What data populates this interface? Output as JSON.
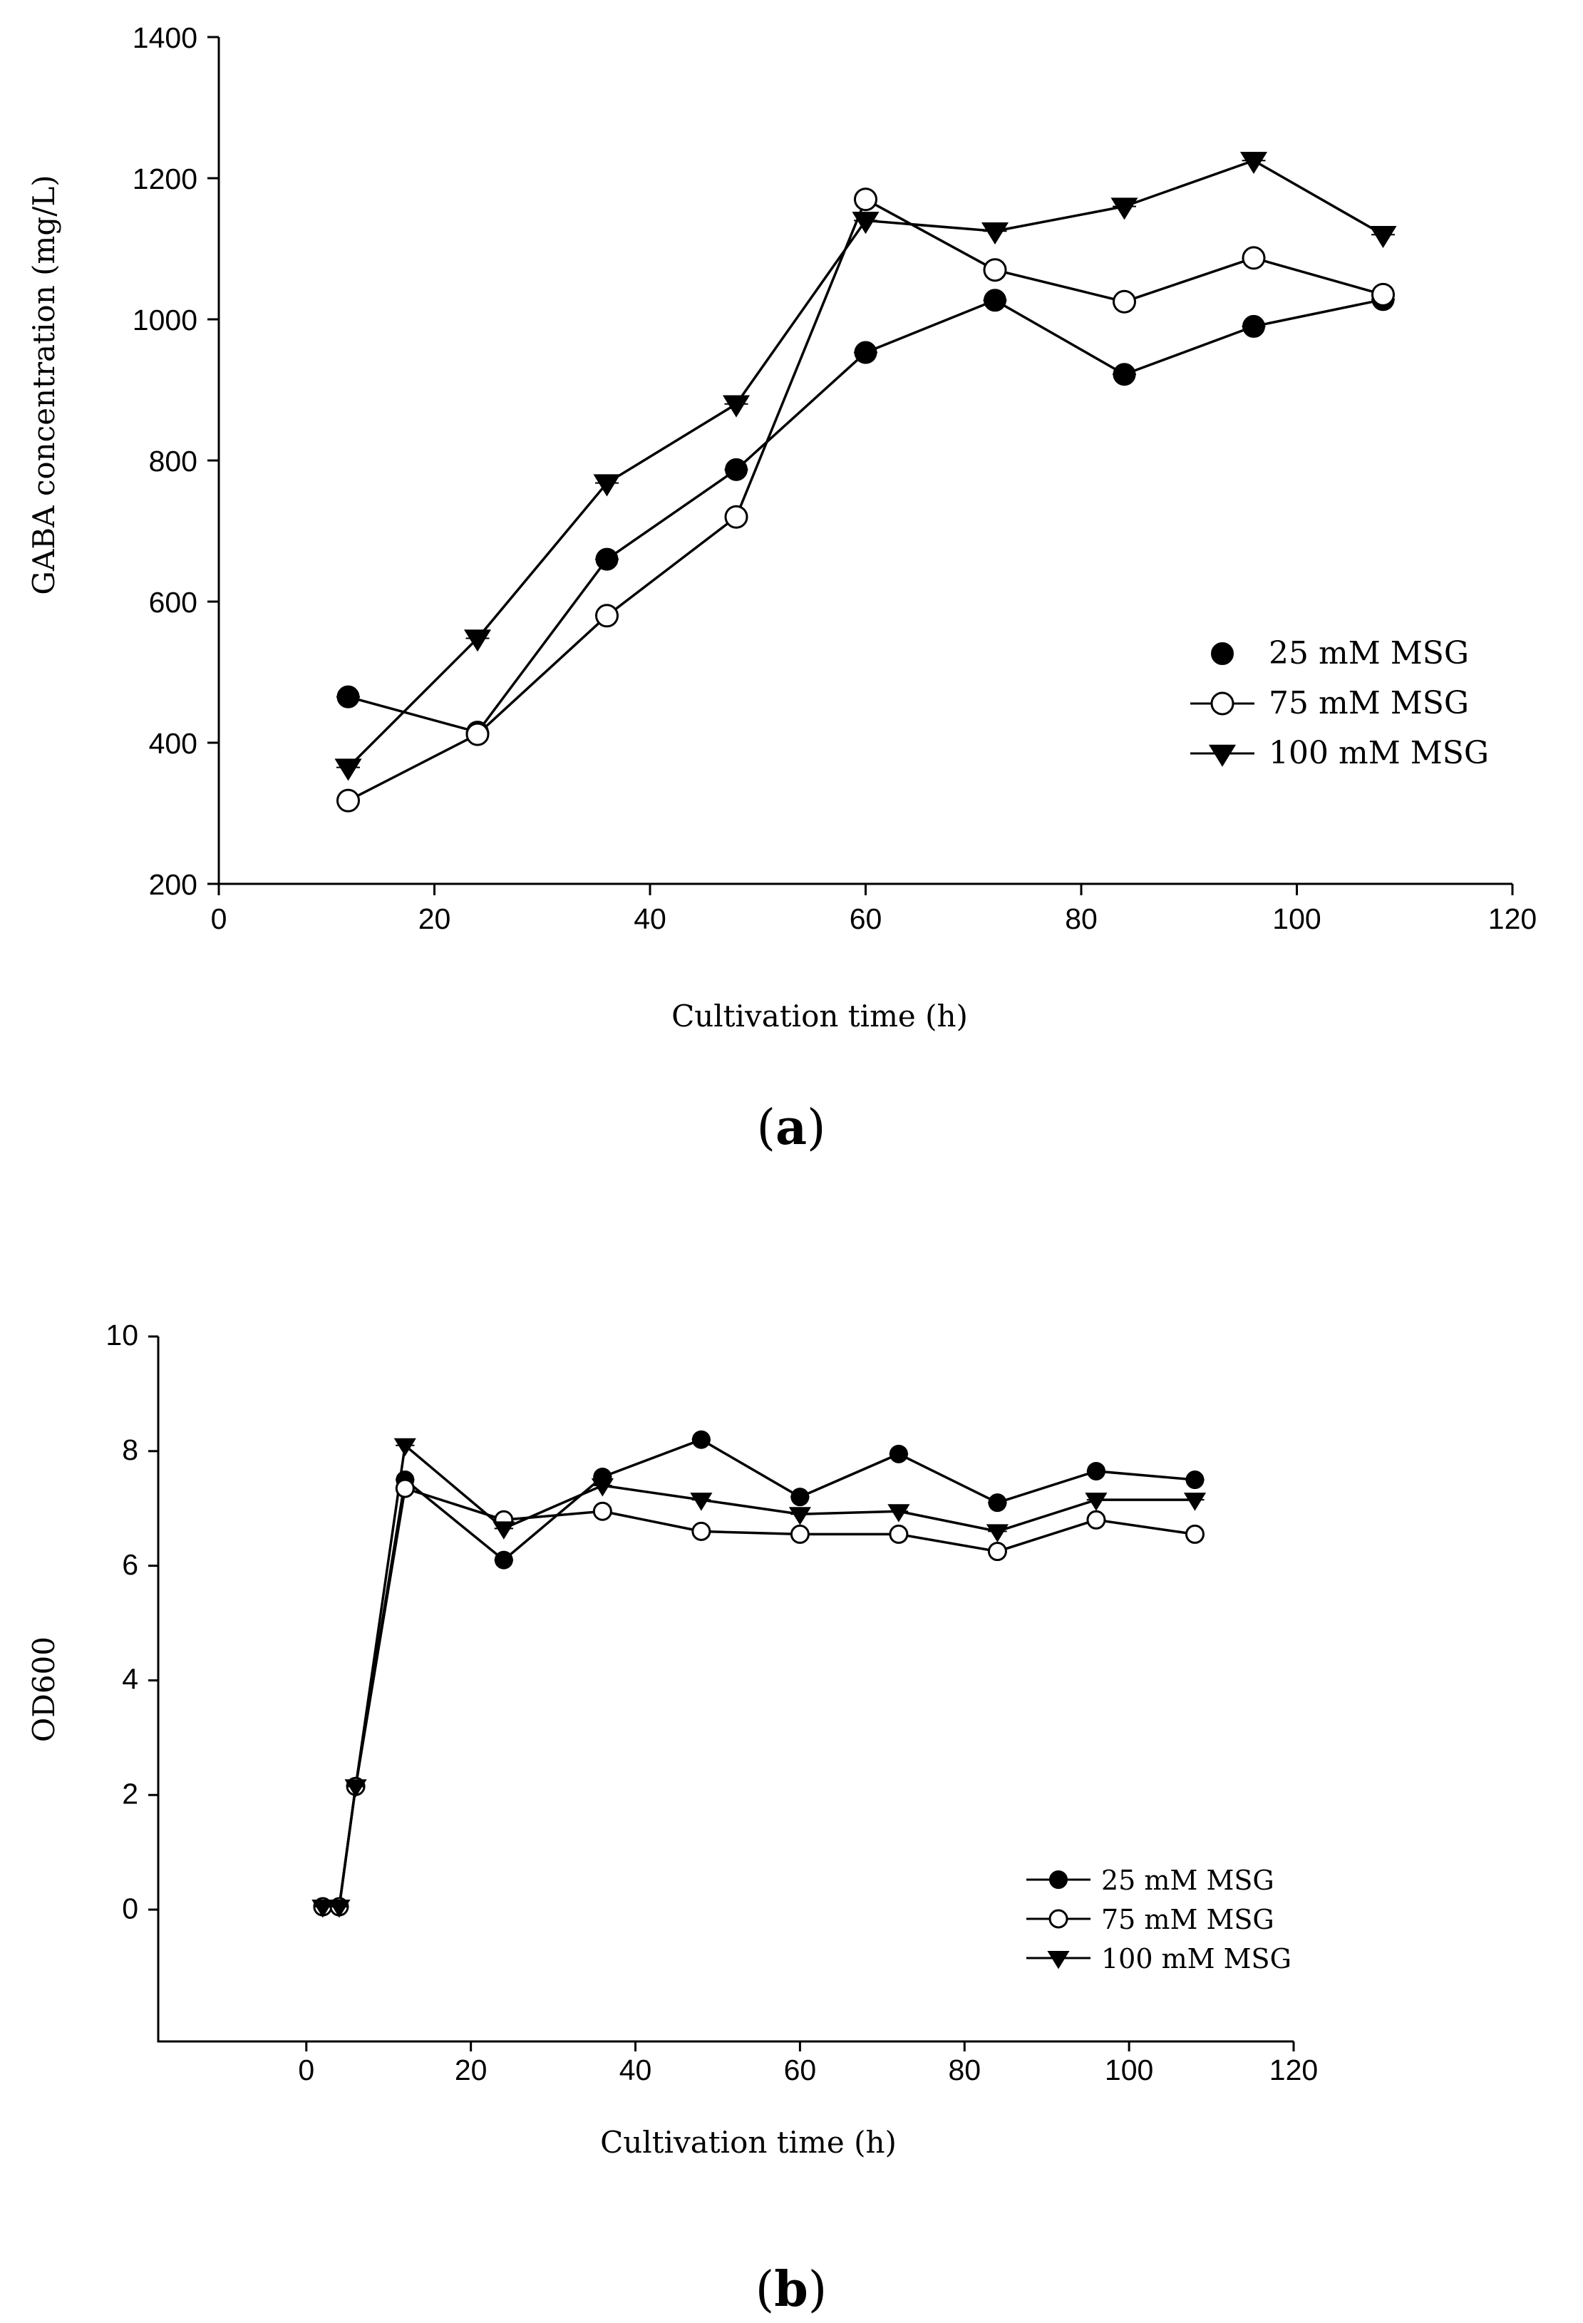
{
  "chart_data": [
    {
      "type": "line",
      "panel_label": "a",
      "xlabel": "Cultivation time (h)",
      "ylabel": "GABA concentration (mg/L)",
      "xlim": [
        0,
        120
      ],
      "ylim": [
        200,
        1400
      ],
      "xticks": [
        0,
        20,
        40,
        60,
        80,
        100,
        120
      ],
      "yticks": [
        200,
        400,
        600,
        800,
        1000,
        1200,
        1400
      ],
      "legend_position": "center-right",
      "series": [
        {
          "name": "25 mM MSG",
          "marker": "filled-circle",
          "x": [
            12,
            24,
            36,
            48,
            60,
            72,
            84,
            96,
            108
          ],
          "y": [
            465,
            415,
            660,
            787,
            953,
            1027,
            922,
            990,
            1028
          ]
        },
        {
          "name": "75 mM MSG",
          "marker": "open-circle",
          "x": [
            12,
            24,
            36,
            48,
            60,
            72,
            84,
            96,
            108
          ],
          "y": [
            318,
            412,
            580,
            720,
            1170,
            1070,
            1025,
            1087,
            1035
          ]
        },
        {
          "name": "100 mM MSG",
          "marker": "filled-triangle-down",
          "x": [
            12,
            24,
            36,
            48,
            60,
            72,
            84,
            96,
            108
          ],
          "y": [
            365,
            548,
            768,
            880,
            1140,
            1125,
            1160,
            1225,
            1120
          ]
        }
      ]
    },
    {
      "type": "line",
      "panel_label": "b",
      "xlabel": "Cultivation time (h)",
      "ylabel": "OD600",
      "xlim": [
        -18,
        120
      ],
      "ylim": [
        -2.3,
        10
      ],
      "xticks": [
        0,
        20,
        40,
        60,
        80,
        100,
        120
      ],
      "yticks": [
        0,
        2,
        4,
        6,
        8,
        10
      ],
      "legend_position": "bottom-right",
      "series": [
        {
          "name": "25 mM MSG",
          "marker": "filled-circle",
          "x": [
            2,
            4,
            6,
            12,
            24,
            36,
            48,
            60,
            72,
            84,
            96,
            108
          ],
          "y": [
            0.05,
            0.05,
            2.15,
            7.5,
            6.1,
            7.55,
            8.2,
            7.2,
            7.95,
            7.1,
            7.65,
            7.5
          ]
        },
        {
          "name": "75 mM MSG",
          "marker": "open-circle",
          "x": [
            2,
            4,
            6,
            12,
            24,
            36,
            48,
            60,
            72,
            84,
            96,
            108
          ],
          "y": [
            0.05,
            0.05,
            2.15,
            7.35,
            6.8,
            6.95,
            6.6,
            6.55,
            6.55,
            6.25,
            6.8,
            6.55
          ]
        },
        {
          "name": "100 mM MSG",
          "marker": "filled-triangle-down",
          "x": [
            2,
            4,
            6,
            12,
            24,
            36,
            48,
            60,
            72,
            84,
            96,
            108
          ],
          "y": [
            0.05,
            0.05,
            2.15,
            8.1,
            6.65,
            7.4,
            7.15,
            6.9,
            6.95,
            6.6,
            7.15,
            7.15
          ]
        }
      ]
    }
  ]
}
